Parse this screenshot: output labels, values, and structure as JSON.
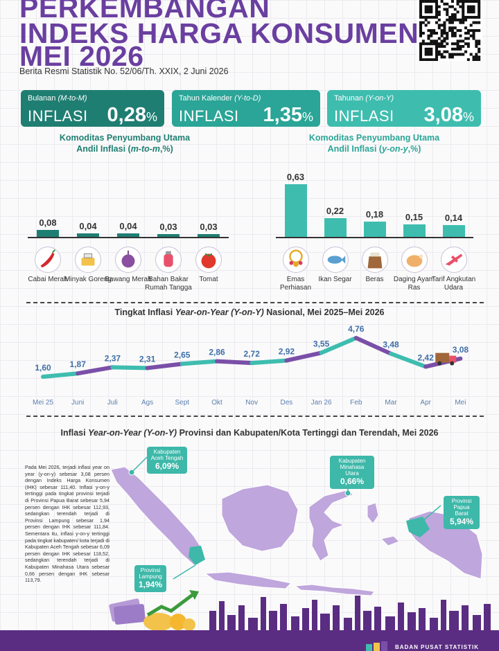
{
  "header": {
    "title_line1": "PERKEMBANGAN",
    "title_line2": "INDEKS HARGA KONSUMEN",
    "title_line3": "MEI 2026",
    "subtitle": "Berita Resmi Statistik No. 52/06/Th. XXIX, 2 Juni 2026"
  },
  "cards": [
    {
      "label": "Bulanan",
      "label_em": "(M-to-M)",
      "kind": "INFLASI",
      "value": "0,28",
      "unit": "%",
      "color": "#1f7e72"
    },
    {
      "label": "Tahun Kalender",
      "label_em": "(Y-to-D)",
      "kind": "INFLASI",
      "value": "1,35",
      "unit": "%",
      "color": "#2aa597"
    },
    {
      "label": "Tahunan",
      "label_em": "(Y-on-Y)",
      "kind": "INFLASI",
      "value": "3,08",
      "unit": "%",
      "color": "#3ebdaf"
    }
  ],
  "mtm": {
    "title_line1": "Komoditas Penyumbang Utama",
    "title_line2_pre": "Andil Inflasi (",
    "title_line2_em": "m-to-m",
    "title_line2_post": ",%)",
    "color": "#1f7e72",
    "items": [
      {
        "value": "0,08",
        "label": "Cabai Merah",
        "icon": "chili-icon"
      },
      {
        "value": "0,04",
        "label": "Minyak Goreng",
        "icon": "cooking-oil-icon"
      },
      {
        "value": "0,04",
        "label": "Bawang Merah",
        "icon": "shallot-icon"
      },
      {
        "value": "0,03",
        "label": "Bahan Bakar Rumah Tangga",
        "icon": "gas-cylinder-icon"
      },
      {
        "value": "0,03",
        "label": "Tomat",
        "icon": "tomato-icon"
      }
    ]
  },
  "yoy": {
    "title_line1": "Komoditas Penyumbang Utama",
    "title_line2_pre": "Andil Inflasi (",
    "title_line2_em": "y-on-y",
    "title_line2_post": ",%)",
    "color": "#3ebdaf",
    "items": [
      {
        "value": "0,63",
        "label": "Emas Perhiasan",
        "icon": "gold-jewelry-icon"
      },
      {
        "value": "0,22",
        "label": "Ikan Segar",
        "icon": "fish-icon"
      },
      {
        "value": "0,18",
        "label": "Beras",
        "icon": "rice-sack-icon"
      },
      {
        "value": "0,15",
        "label": "Daging Ayam Ras",
        "icon": "chicken-meat-icon"
      },
      {
        "value": "0,14",
        "label": "Tarif Angkutan Udara",
        "icon": "airplane-icon"
      }
    ]
  },
  "trend": {
    "title_pre": "Tingkat Inflasi ",
    "title_em": "Year-on-Year (Y-on-Y)",
    "title_post": " Nasional, Mei 2025–Mei 2026",
    "truck_icon": "delivery-truck-icon"
  },
  "chart_data": [
    {
      "type": "bar",
      "categories": [
        "Cabai Merah",
        "Minyak Goreng",
        "Bawang Merah",
        "Bahan Bakar Rumah Tangga",
        "Tomat"
      ],
      "values": [
        0.08,
        0.04,
        0.04,
        0.03,
        0.03
      ],
      "title": "Komoditas Penyumbang Utama Andil Inflasi (m-to-m,%)"
    },
    {
      "type": "bar",
      "categories": [
        "Emas Perhiasan",
        "Ikan Segar",
        "Beras",
        "Daging Ayam Ras",
        "Tarif Angkutan Udara"
      ],
      "values": [
        0.63,
        0.22,
        0.18,
        0.15,
        0.14
      ],
      "title": "Komoditas Penyumbang Utama Andil Inflasi (y-on-y,%)"
    },
    {
      "type": "line",
      "title": "Tingkat Inflasi Year-on-Year (Y-on-Y) Nasional, Mei 2025–Mei 2026",
      "x": [
        "Mei 25",
        "Juni",
        "Juli",
        "Ags",
        "Sept",
        "Okt",
        "Nov",
        "Des",
        "Jan 26",
        "Feb",
        "Mar",
        "Apr",
        "Mei"
      ],
      "y": [
        1.6,
        1.87,
        2.37,
        2.31,
        2.65,
        2.86,
        2.72,
        2.92,
        3.55,
        4.76,
        3.48,
        2.42,
        3.08
      ],
      "labels": [
        "1,60",
        "1,87",
        "2,37",
        "2,31",
        "2,65",
        "2,86",
        "2,72",
        "2,92",
        "3,55",
        "4,76",
        "3,48",
        "2,42",
        "3,08"
      ],
      "colors": {
        "teal": "#3ebdaf",
        "purple": "#7a4fa8"
      }
    }
  ],
  "map": {
    "title_pre": "Inflasi ",
    "title_em": "Year-on-Year (Y-on-Y)",
    "title_post": " Provinsi dan Kabupaten/Kota Tertinggi dan Terendah, Mei 2026",
    "paragraph": "Pada Mei 2026, terjadi inflasi year on year (y-on-y) sebesar 3,08 persen dengan Indeks Harga Konsumen (IHK) sebesar 111,40. Inflasi y-on-y tertinggi pada tingkat provinsi terjadi di Provinsi Papua Barat sebesar 5,94 persen dengan IHK sebesar 112,93, sedangkan terendah terjadi di Provinsi Lampung sebesar 1,94 persen dengan IHK sebesar 111,84. Sementara itu, inflasi y-on-y tertinggi pada tingkat kabupaten/ kota terjadi di Kabupaten Aceh Tengah sebesar 6,09 persen dengan IHK sebesar 118,52, sedangkan terendah terjadi di Kabupaten Minahasa Utara sebesar 0,66 persen dengan IHK sebesar 113,79.",
    "callouts": [
      {
        "name": "Kabupaten Aceh Tengah",
        "value": "6,09%"
      },
      {
        "name": "Kabupaten Minahasa Utara",
        "value": "0,66%"
      },
      {
        "name": "Provinsi Papua Barat",
        "value": "5,94%"
      },
      {
        "name": "Provinsi Lampung",
        "value": "1,94%"
      }
    ]
  },
  "footer": {
    "brand": "BADAN PUSAT STATISTIK"
  }
}
